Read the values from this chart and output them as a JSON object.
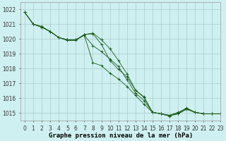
{
  "title": "Graphe pression niveau de la mer (hPa)",
  "background_color": "#cff0f0",
  "grid_color": "#aacccc",
  "line_color": "#1a5c1a",
  "marker_color": "#1a5c1a",
  "xlim": [
    -0.5,
    23
  ],
  "ylim": [
    1014.5,
    1022.5
  ],
  "yticks": [
    1015,
    1016,
    1017,
    1018,
    1019,
    1020,
    1021,
    1022
  ],
  "xticks": [
    0,
    1,
    2,
    3,
    4,
    5,
    6,
    7,
    8,
    9,
    10,
    11,
    12,
    13,
    14,
    15,
    16,
    17,
    18,
    19,
    20,
    21,
    22,
    23
  ],
  "series": [
    [
      1021.8,
      1021.0,
      1020.8,
      1020.5,
      1020.1,
      1019.9,
      1019.9,
      1020.3,
      1020.35,
      1019.65,
      1018.55,
      1017.95,
      1017.45,
      1016.55,
      1016.1,
      1015.05,
      1014.95,
      1014.85,
      1014.95,
      1015.25,
      1015.05,
      1014.95,
      1014.95,
      1014.95
    ],
    [
      1021.8,
      1021.0,
      1020.85,
      1020.5,
      1020.1,
      1019.95,
      1019.95,
      1020.3,
      1020.4,
      1019.95,
      1019.35,
      1018.55,
      1017.65,
      1016.55,
      1016.05,
      1015.05,
      1014.95,
      1014.85,
      1015.05,
      1015.3,
      1015.05,
      1014.95,
      1014.95,
      1014.95
    ],
    [
      1021.8,
      1021.0,
      1020.8,
      1020.5,
      1020.1,
      1019.95,
      1019.95,
      1020.25,
      1019.55,
      1019.15,
      1018.65,
      1018.15,
      1017.25,
      1016.35,
      1015.85,
      1015.05,
      1014.95,
      1014.8,
      1015.0,
      1015.35,
      1015.05,
      1014.95,
      1014.95,
      1014.95
    ],
    [
      1021.8,
      1021.0,
      1020.8,
      1020.5,
      1020.1,
      1019.95,
      1019.95,
      1020.25,
      1018.4,
      1018.2,
      1017.7,
      1017.3,
      1016.8,
      1016.2,
      1015.6,
      1015.05,
      1014.95,
      1014.8,
      1014.95,
      1015.3,
      1015.05,
      1014.95,
      1014.95,
      1014.95
    ]
  ],
  "figsize": [
    3.2,
    2.0
  ],
  "dpi": 100,
  "tick_fontsize": 5.5,
  "title_fontsize": 6.5
}
